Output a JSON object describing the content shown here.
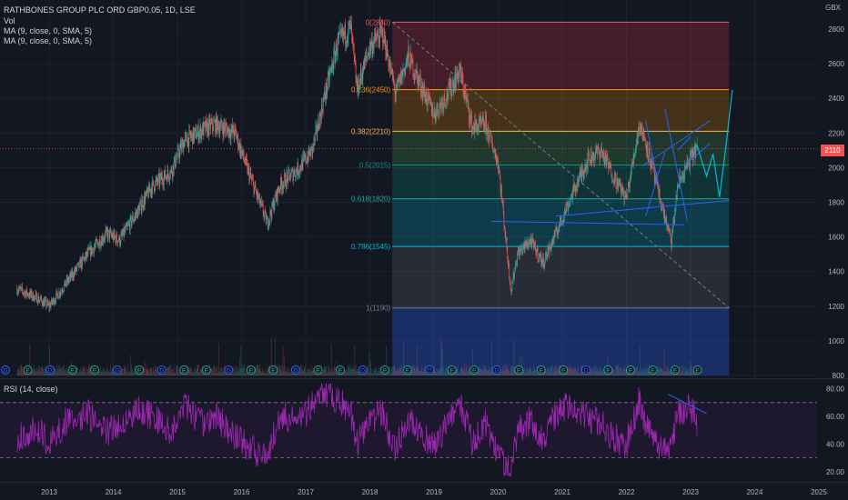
{
  "legend": {
    "symbol": "RATHBONES GROUP PLC ORD GBP0.05, 1D, LSE",
    "vol": "Vol",
    "ma1": "MA (9, close, 0, SMA, 5)",
    "ma2": "MA (9, close, 0, SMA, 5)"
  },
  "currency": "GBX",
  "last_price": "2110",
  "rsi_legend": "RSI (14, close)",
  "colors": {
    "background": "#131722",
    "candle_up": "#26a69a",
    "candle_down": "#ef5350",
    "rsi_line": "#9c27b0",
    "drawing_lines": "#2962ff",
    "projection": "#00bcd4"
  },
  "chart_data": [
    {
      "type": "candlestick",
      "title": "RATHBONES GROUP PLC ORD GBP0.05, 1D, LSE",
      "ylabel": "GBX",
      "ylim": [
        800,
        2900
      ],
      "x_ticks": [
        "2013",
        "2014",
        "2015",
        "2016",
        "2017",
        "2018",
        "2019",
        "2020",
        "2021",
        "2022",
        "2023",
        "2024",
        "2025"
      ],
      "y_ticks": [
        800,
        1000,
        1200,
        1400,
        1600,
        1800,
        2000,
        2200,
        2400,
        2600,
        2800
      ],
      "price_path": {
        "x": [
          2012.5,
          2012.8,
          2013.0,
          2013.3,
          2013.6,
          2013.9,
          2014.1,
          2014.4,
          2014.6,
          2014.9,
          2015.1,
          2015.4,
          2015.6,
          2015.9,
          2016.1,
          2016.4,
          2016.6,
          2016.9,
          2017.1,
          2017.3,
          2017.5,
          2017.7,
          2017.8,
          2018.0,
          2018.2,
          2018.4,
          2018.6,
          2018.8,
          2019.0,
          2019.2,
          2019.4,
          2019.6,
          2019.8,
          2020.0,
          2020.2,
          2020.3,
          2020.5,
          2020.7,
          2020.9,
          2021.1,
          2021.4,
          2021.6,
          2021.8,
          2022.0,
          2022.2,
          2022.3,
          2022.5,
          2022.7,
          2022.8,
          2023.0,
          2023.1
        ],
        "y": [
          1300,
          1250,
          1200,
          1350,
          1500,
          1620,
          1580,
          1760,
          1890,
          1980,
          2150,
          2220,
          2250,
          2200,
          1980,
          1680,
          1900,
          2000,
          2100,
          2420,
          2720,
          2810,
          2450,
          2700,
          2780,
          2430,
          2640,
          2470,
          2310,
          2420,
          2560,
          2230,
          2250,
          2030,
          1290,
          1500,
          1580,
          1450,
          1620,
          1800,
          2050,
          2100,
          1950,
          1820,
          2250,
          2150,
          1850,
          1570,
          1900,
          2050,
          2120
        ]
      },
      "fibonacci": [
        {
          "label": "0(2840)",
          "value": 2840
        },
        {
          "label": "0.236(2450)",
          "value": 2450
        },
        {
          "label": "0.382(2210)",
          "value": 2210
        },
        {
          "label": "0.5(2015)",
          "value": 2015
        },
        {
          "label": "0.618(1820)",
          "value": 1820
        },
        {
          "label": "0.786(1545)",
          "value": 1545
        },
        {
          "label": "1(1190)",
          "value": 1190
        }
      ],
      "last_price": 2110,
      "projection": {
        "x": [
          2023.1,
          2023.25,
          2023.35,
          2023.45,
          2023.55,
          2023.65
        ],
        "y": [
          2130,
          1950,
          2080,
          1830,
          2120,
          2450
        ]
      }
    },
    {
      "type": "line",
      "title": "RSI (14, close)",
      "ylim": [
        15,
        85
      ],
      "y_ticks": [
        20,
        40,
        60,
        80
      ],
      "levels": [
        70,
        30
      ],
      "series": [
        {
          "x": [
            2012.5,
            2012.8,
            2013.0,
            2013.3,
            2013.6,
            2013.9,
            2014.1,
            2014.4,
            2014.6,
            2014.9,
            2015.1,
            2015.4,
            2015.6,
            2015.9,
            2016.1,
            2016.4,
            2016.6,
            2016.9,
            2017.1,
            2017.3,
            2017.5,
            2017.7,
            2017.8,
            2018.0,
            2018.2,
            2018.4,
            2018.6,
            2018.8,
            2019.0,
            2019.2,
            2019.4,
            2019.6,
            2019.8,
            2020.0,
            2020.2,
            2020.3,
            2020.5,
            2020.7,
            2020.9,
            2021.1,
            2021.4,
            2021.6,
            2021.8,
            2022.0,
            2022.2,
            2022.3,
            2022.5,
            2022.7,
            2022.8,
            2023.0,
            2023.1
          ],
          "values": [
            45,
            52,
            40,
            58,
            62,
            48,
            55,
            66,
            60,
            50,
            68,
            55,
            60,
            45,
            38,
            30,
            62,
            55,
            70,
            78,
            72,
            65,
            40,
            58,
            62,
            35,
            60,
            48,
            38,
            55,
            70,
            40,
            55,
            30,
            18,
            50,
            58,
            45,
            62,
            68,
            60,
            55,
            45,
            40,
            72,
            55,
            35,
            40,
            62,
            68,
            55
          ]
        }
      ]
    }
  ],
  "events": [
    "D",
    "E",
    "D",
    "E",
    "E",
    "D",
    "E",
    "D",
    "E",
    "E",
    "D",
    "E",
    "E",
    "D",
    "E",
    "E",
    "D",
    "E",
    "E",
    "D",
    "E",
    "E",
    "D",
    "E",
    "E",
    "E",
    "D",
    "E",
    "E",
    "E",
    "E",
    "E",
    "E",
    "E",
    "E",
    "E"
  ]
}
